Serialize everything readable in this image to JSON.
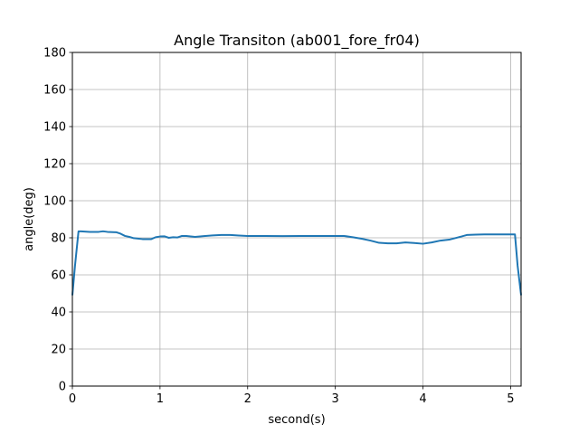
{
  "chart_data": {
    "type": "line",
    "title": "Angle Transiton (ab001_fore_fr04)",
    "xlabel": "second(s)",
    "ylabel": "angle(deg)",
    "xlim": [
      0,
      5.12
    ],
    "ylim": [
      0,
      180
    ],
    "xticks": [
      0,
      1,
      2,
      3,
      4,
      5
    ],
    "xtick_labels": [
      "0",
      "1",
      "2",
      "3",
      "4",
      "5"
    ],
    "yticks": [
      0,
      20,
      40,
      60,
      80,
      100,
      120,
      140,
      160,
      180
    ],
    "ytick_labels": [
      "0",
      "20",
      "40",
      "60",
      "80",
      "100",
      "120",
      "140",
      "160",
      "180"
    ],
    "grid": true,
    "legend": "none",
    "series": [
      {
        "color": "#1f77b4",
        "x": [
          0.0,
          0.03,
          0.07,
          0.1,
          0.2,
          0.3,
          0.35,
          0.4,
          0.5,
          0.55,
          0.6,
          0.65,
          0.7,
          0.8,
          0.9,
          0.95,
          1.0,
          1.05,
          1.1,
          1.15,
          1.2,
          1.25,
          1.3,
          1.4,
          1.5,
          1.6,
          1.7,
          1.8,
          1.9,
          2.0,
          2.2,
          2.4,
          2.6,
          2.8,
          3.0,
          3.1,
          3.2,
          3.3,
          3.4,
          3.5,
          3.6,
          3.7,
          3.8,
          3.9,
          4.0,
          4.1,
          4.2,
          4.3,
          4.4,
          4.5,
          4.6,
          4.7,
          4.8,
          4.9,
          5.0,
          5.05,
          5.08,
          5.12
        ],
        "y": [
          49.0,
          65.0,
          83.5,
          83.5,
          83.2,
          83.2,
          83.5,
          83.2,
          83.0,
          82.2,
          81.0,
          80.5,
          79.8,
          79.3,
          79.3,
          80.3,
          80.7,
          80.8,
          80.0,
          80.3,
          80.2,
          81.0,
          81.0,
          80.5,
          80.9,
          81.3,
          81.5,
          81.5,
          81.2,
          81.0,
          81.0,
          80.9,
          81.0,
          81.0,
          81.0,
          81.0,
          80.3,
          79.5,
          78.5,
          77.3,
          77.0,
          77.0,
          77.5,
          77.2,
          76.8,
          77.5,
          78.5,
          79.0,
          80.2,
          81.5,
          81.7,
          81.8,
          81.8,
          81.8,
          81.8,
          81.8,
          65.0,
          49.0
        ]
      }
    ]
  }
}
